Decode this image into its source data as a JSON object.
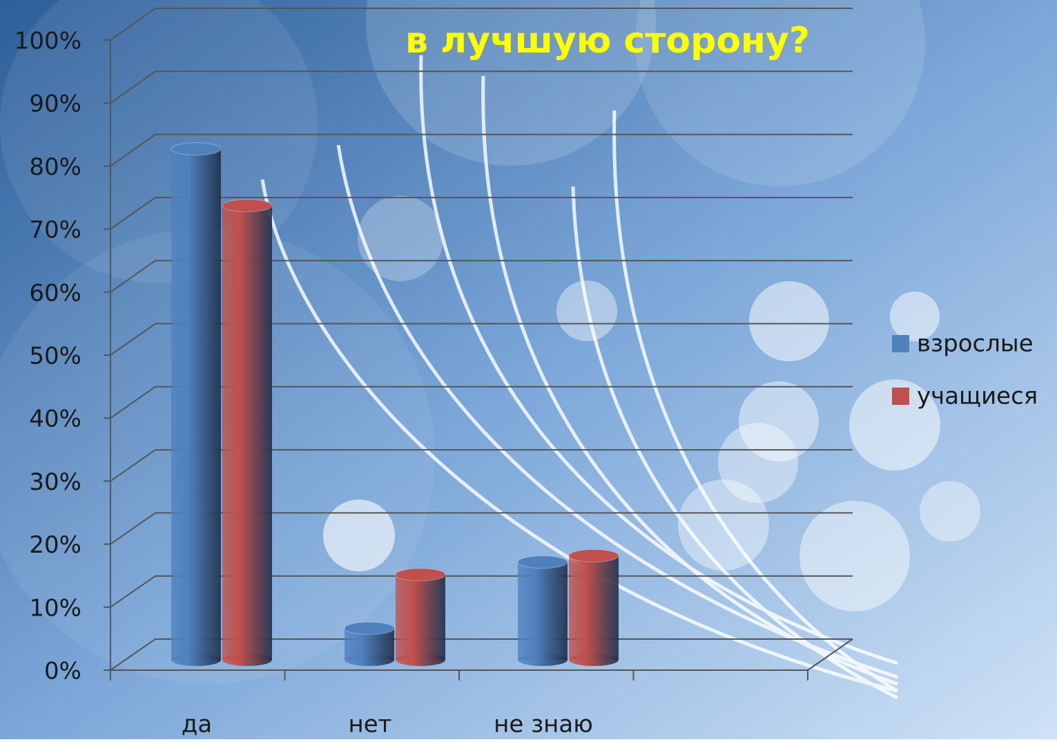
{
  "chart_data": {
    "type": "bar",
    "title": "в лучшую сторону?",
    "categories": [
      "да",
      "нет",
      "не знаю"
    ],
    "series": [
      {
        "name": "взрослые",
        "color": "#4f81bd",
        "values": [
          81,
          5,
          15.5
        ]
      },
      {
        "name": "учащиеся",
        "color": "#c0504d",
        "values": [
          72,
          13.5,
          16.5
        ]
      }
    ],
    "ylim": [
      0,
      100
    ],
    "yticks": [
      {
        "value": 0,
        "label": "0%"
      },
      {
        "value": 10,
        "label": "10%"
      },
      {
        "value": 20,
        "label": "20%"
      },
      {
        "value": 30,
        "label": "30%"
      },
      {
        "value": 40,
        "label": "40%"
      },
      {
        "value": 50,
        "label": "50%"
      },
      {
        "value": 60,
        "label": "60%"
      },
      {
        "value": 70,
        "label": "70%"
      },
      {
        "value": 80,
        "label": "80%"
      },
      {
        "value": 90,
        "label": "90%"
      },
      {
        "value": 100,
        "label": "100%"
      }
    ],
    "grid": true,
    "legend": "right"
  }
}
